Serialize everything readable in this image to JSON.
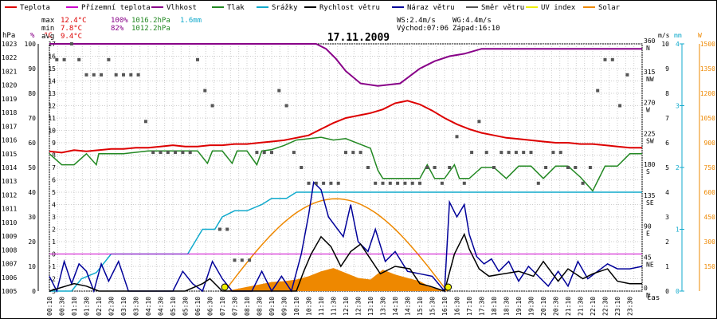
{
  "legend": [
    {
      "label": "Teplota",
      "color": "#dd0000"
    },
    {
      "label": "Přízemní teplota",
      "color": "#cc00cc"
    },
    {
      "label": "Vlhkost",
      "color": "#880088"
    },
    {
      "label": "Tlak",
      "color": "#228822"
    },
    {
      "label": "Srážky",
      "color": "#11aacc"
    },
    {
      "label": "Rychlost větru",
      "color": "#000000"
    },
    {
      "label": "Náraz větru",
      "color": "#000099"
    },
    {
      "label": "Směr větru",
      "color": "#555555"
    },
    {
      "label": "UV index",
      "color": "#eeee00"
    },
    {
      "label": "Solar",
      "color": "#ee8800"
    }
  ],
  "stats": {
    "max": {
      "label": "max",
      "temp": "12.4°C",
      "hum": "100%",
      "press": "1016.2hPa",
      "rain": "1.6mm"
    },
    "min": {
      "label": "min",
      "temp": "7.8°C",
      "hum": "82%",
      "press": "1012.2hPa"
    },
    "avg": {
      "label": "avg",
      "temp": "9.4°C"
    },
    "ws": "WS:2.4m/s",
    "wg": "WG:4.4m/s",
    "sunrise": "Východ:07:06",
    "sunset": "Západ:16:10"
  },
  "chart_data": {
    "type": "line",
    "title": "17.11.2009",
    "xlabel": "čas",
    "x_ticks": [
      "00:10",
      "00:30",
      "01:10",
      "01:30",
      "02:10",
      "02:30",
      "03:10",
      "03:30",
      "04:10",
      "04:30",
      "05:10",
      "05:30",
      "06:10",
      "06:30",
      "07:10",
      "07:30",
      "08:10",
      "08:30",
      "09:10",
      "09:30",
      "10:10",
      "10:30",
      "11:10",
      "11:30",
      "12:10",
      "12:30",
      "13:10",
      "13:30",
      "14:10",
      "14:30",
      "15:10",
      "15:30",
      "16:10",
      "16:30",
      "17:10",
      "17:30",
      "18:10",
      "18:30",
      "19:10",
      "19:30",
      "20:10",
      "20:30",
      "21:10",
      "21:30",
      "22:10",
      "22:30",
      "23:10",
      "23:30"
    ],
    "left_axes": {
      "hPa": {
        "unit": "hPa",
        "range": [
          1005,
          1023
        ],
        "ticks": [
          "1005",
          "1006",
          "1007",
          "1008",
          "1009",
          "1010",
          "1011",
          "1012",
          "1013",
          "1014",
          "1015",
          "1016",
          "1017",
          "1018",
          "1019",
          "1020",
          "1021",
          "1022",
          "1023"
        ]
      },
      "percent": {
        "unit": "%",
        "range": [
          0,
          100
        ],
        "ticks": [
          "0",
          "10",
          "20",
          "30",
          "40",
          "50",
          "60",
          "70",
          "80",
          "90",
          "100"
        ]
      },
      "celsius": {
        "unit": "°C",
        "range": [
          -3,
          17
        ],
        "ticks": [
          "-3",
          "-2",
          "-1",
          "0",
          "1",
          "2",
          "3",
          "4",
          "5",
          "6",
          "7",
          "8",
          "9",
          "10",
          "11",
          "12",
          "13",
          "14",
          "15",
          "16",
          "17"
        ]
      }
    },
    "right_axes": {
      "direction": {
        "ticks": [
          "0 N",
          "45 NE",
          "90 E",
          "135 SE",
          "180 S",
          "225 SW",
          "270 W",
          "315 NW",
          "360 N"
        ]
      },
      "wind": {
        "unit": "m/s",
        "range": [
          0,
          10
        ],
        "ticks": [
          "0",
          "1",
          "2",
          "3",
          "4",
          "5",
          "6",
          "7",
          "8",
          "9",
          "10"
        ]
      },
      "rain": {
        "unit": "mm",
        "range": [
          0,
          4
        ],
        "ticks": [
          "0",
          "1",
          "2",
          "3",
          "4"
        ]
      },
      "solar": {
        "unit": "W",
        "range": [
          0,
          1500
        ],
        "ticks": [
          "0",
          "150",
          "300",
          "450",
          "600",
          "750",
          "900",
          "1050",
          "1200",
          "1350",
          "1500"
        ]
      }
    },
    "series": {
      "temperature": {
        "name": "Teplota",
        "unit": "°C",
        "x": [
          0,
          0.5,
          1,
          1.5,
          2,
          2.5,
          3,
          3.5,
          4,
          4.5,
          5,
          5.5,
          6,
          6.5,
          7,
          7.5,
          8,
          8.5,
          9,
          9.5,
          10,
          10.5,
          11,
          11.5,
          12,
          12.5,
          13,
          13.5,
          14,
          14.5,
          15,
          15.5,
          16,
          16.5,
          17,
          17.5,
          18,
          18.5,
          19,
          19.5,
          20,
          20.5,
          21,
          21.5,
          22,
          22.5,
          23,
          23.5,
          24
        ],
        "values": [
          8.3,
          8.2,
          8.4,
          8.3,
          8.4,
          8.5,
          8.5,
          8.6,
          8.6,
          8.7,
          8.8,
          8.7,
          8.7,
          8.8,
          8.8,
          8.9,
          8.9,
          9.0,
          9.1,
          9.2,
          9.4,
          9.6,
          10.1,
          10.6,
          11.0,
          11.2,
          11.4,
          11.7,
          12.2,
          12.4,
          12.1,
          11.6,
          11.0,
          10.5,
          10.1,
          9.8,
          9.6,
          9.4,
          9.3,
          9.2,
          9.1,
          9.0,
          9.0,
          8.9,
          8.9,
          8.8,
          8.7,
          8.6,
          8.6
        ]
      },
      "humidity": {
        "name": "Vlhkost",
        "unit": "%",
        "x": [
          0,
          10.8,
          11.2,
          11.6,
          12.0,
          12.6,
          13.3,
          14.2,
          14.6,
          15.0,
          15.6,
          16.2,
          16.8,
          17.5,
          18.4,
          24
        ],
        "values": [
          100,
          100,
          98,
          94,
          89,
          84,
          83,
          84,
          87,
          90,
          93,
          95,
          96,
          98,
          98,
          98
        ]
      },
      "ground_temp": {
        "name": "Přízemní teplota",
        "unit": "°C",
        "x": [
          0,
          24
        ],
        "values": [
          0,
          0
        ]
      },
      "pressure": {
        "name": "Tlak",
        "unit": "hPa",
        "x": [
          0,
          0.5,
          1,
          1.5,
          1.9,
          2,
          2.5,
          3,
          4,
          5,
          6,
          6.4,
          6.6,
          7,
          7.4,
          7.6,
          8,
          8.4,
          8.6,
          9,
          9.5,
          10,
          11,
          11.5,
          12,
          13,
          13.3,
          13.5,
          14,
          14.5,
          15,
          15.3,
          15.6,
          16,
          16.4,
          16.6,
          17,
          17.5,
          18,
          18.5,
          19,
          19.5,
          20,
          20.5,
          21,
          21.5,
          22,
          22.5,
          23,
          23.5,
          24
        ],
        "values": [
          1015,
          1014.2,
          1014.2,
          1015,
          1014.2,
          1015,
          1015,
          1015,
          1015.2,
          1015.2,
          1015.2,
          1014.3,
          1015.2,
          1015.2,
          1014.3,
          1015.2,
          1015.2,
          1014.2,
          1015.2,
          1015.3,
          1015.6,
          1016.0,
          1016.2,
          1016.0,
          1016.1,
          1015.4,
          1013.8,
          1013.2,
          1013.2,
          1013.2,
          1013.2,
          1014.2,
          1013.2,
          1013.2,
          1014.2,
          1013.2,
          1013.2,
          1014.0,
          1014.0,
          1013.2,
          1014.1,
          1014.1,
          1013.2,
          1014.1,
          1014.1,
          1013.3,
          1012.3,
          1014.1,
          1014.1,
          1015.0,
          1015.0
        ]
      },
      "rain": {
        "name": "Srážky",
        "unit": "mm",
        "x": [
          0,
          0.9,
          1.3,
          1.9,
          2.5,
          3,
          3.5,
          4,
          4.5,
          5,
          5.6,
          5.9,
          6.2,
          6.7,
          7,
          7.5,
          8,
          8.6,
          9,
          9.6,
          10,
          10.5,
          11,
          24
        ],
        "values": [
          0,
          0,
          0.2,
          0.3,
          0.6,
          0.6,
          0.6,
          0.6,
          0.6,
          0.6,
          0.6,
          0.8,
          1.0,
          1.0,
          1.2,
          1.3,
          1.3,
          1.4,
          1.5,
          1.5,
          1.6,
          1.6,
          1.6,
          1.6
        ]
      },
      "wind_speed": {
        "name": "Rychlost větru",
        "unit": "m/s",
        "x": [
          0,
          1,
          1.5,
          2,
          2.5,
          5,
          5.5,
          6.2,
          6.5,
          7,
          8,
          8.4,
          9,
          9.4,
          10,
          10.3,
          10.6,
          11,
          11.4,
          11.8,
          12.2,
          12.6,
          13,
          13.4,
          14,
          14.6,
          15,
          15.4,
          16,
          16.4,
          16.8,
          17,
          17.4,
          17.8,
          18.4,
          19,
          19.6,
          20,
          20.6,
          21,
          21.6,
          22,
          22.6,
          23,
          23.5,
          24
        ],
        "values": [
          0,
          0.3,
          0.2,
          0,
          0,
          0,
          0,
          0.3,
          0.5,
          0,
          0,
          0,
          0,
          0,
          0,
          0.8,
          1.5,
          2.2,
          1.8,
          1.0,
          1.6,
          1.9,
          1.3,
          0.7,
          1.0,
          0.9,
          0.3,
          0.2,
          0,
          1.5,
          2.3,
          1.7,
          0.9,
          0.6,
          0.7,
          0.8,
          0.6,
          1.2,
          0.4,
          0.9,
          0.5,
          0.7,
          0.9,
          0.4,
          0.3,
          0.3
        ]
      },
      "wind_gust": {
        "name": "Náraz větru",
        "unit": "m/s",
        "x": [
          0,
          0.3,
          0.6,
          0.9,
          1.2,
          1.5,
          1.8,
          2.1,
          2.4,
          2.8,
          3.2,
          5.0,
          5.4,
          5.8,
          6.2,
          6.6,
          7.0,
          7.4,
          8.2,
          8.6,
          9.0,
          9.4,
          9.8,
          10.2,
          10.5,
          10.7,
          11.0,
          11.3,
          11.6,
          11.9,
          12.2,
          12.5,
          12.9,
          13.2,
          13.6,
          14.0,
          14.5,
          15.0,
          15.5,
          16.0,
          16.2,
          16.5,
          16.8,
          17.0,
          17.3,
          17.6,
          17.9,
          18.2,
          18.6,
          19.0,
          19.4,
          19.8,
          20.2,
          20.6,
          21.0,
          21.4,
          21.8,
          22.2,
          22.6,
          23.0,
          23.5,
          24
        ],
        "values": [
          0.6,
          0,
          1.2,
          0.3,
          1.1,
          0.8,
          0,
          1.1,
          0.4,
          1.2,
          0,
          0,
          0.8,
          0.3,
          0,
          1.2,
          0.5,
          0,
          0,
          0.8,
          0,
          0.6,
          0,
          1.5,
          3.1,
          4.4,
          4.1,
          3.0,
          2.6,
          2.2,
          3.5,
          2.0,
          1.6,
          2.5,
          1.2,
          1.6,
          0.8,
          0.7,
          0.6,
          0,
          3.6,
          3.0,
          3.5,
          2.3,
          1.4,
          1.1,
          1.3,
          0.8,
          1.2,
          0.4,
          1.0,
          0.6,
          0.2,
          0.8,
          0.2,
          1.2,
          0.5,
          0.8,
          1.1,
          0.9,
          0.9,
          1.0
        ]
      },
      "solar": {
        "name": "Solar",
        "unit": "W",
        "x": [
          7.1,
          7.5,
          8,
          8.5,
          9,
          9.5,
          10,
          10.5,
          11,
          11.5,
          12,
          12.5,
          13,
          13.5,
          14,
          14.5,
          15,
          15.5,
          16.1
        ],
        "values": [
          0,
          10,
          25,
          40,
          55,
          60,
          70,
          90,
          120,
          140,
          110,
          80,
          70,
          130,
          100,
          80,
          60,
          20,
          0
        ]
      },
      "solar_theoretical": {
        "name": "Solar",
        "unit": "W",
        "x": [
          7.1,
          8,
          9,
          10,
          11,
          11.5,
          12,
          13,
          14,
          15,
          16.1
        ],
        "values": [
          0,
          200,
          380,
          500,
          550,
          560,
          550,
          480,
          370,
          210,
          0
        ]
      },
      "wind_direction": {
        "name": "Směr větru",
        "unit": "°",
        "x": [
          0.3,
          0.6,
          0.9,
          1.2,
          1.5,
          1.8,
          2.1,
          2.4,
          2.7,
          3.0,
          3.3,
          3.6,
          3.9,
          4.2,
          4.5,
          4.8,
          5.1,
          5.4,
          5.7,
          6.0,
          6.3,
          6.6,
          6.9,
          7.2,
          7.5,
          7.8,
          8.1,
          8.4,
          8.7,
          9.0,
          9.3,
          9.6,
          9.9,
          10.2,
          10.5,
          10.8,
          11.1,
          11.4,
          11.7,
          12.0,
          12.3,
          12.6,
          12.9,
          13.2,
          13.5,
          13.8,
          14.1,
          14.4,
          14.7,
          15.0,
          15.3,
          15.6,
          15.9,
          16.2,
          16.5,
          16.8,
          17.1,
          17.4,
          17.7,
          18.0,
          18.3,
          18.6,
          18.9,
          19.2,
          19.5,
          19.8,
          20.1,
          20.4,
          20.7,
          21.0,
          21.3,
          21.6,
          21.9,
          22.2,
          22.5,
          22.8,
          23.1,
          23.4
        ],
        "values": [
          337,
          337,
          360,
          337,
          315,
          315,
          315,
          337,
          315,
          315,
          315,
          315,
          247,
          202,
          202,
          202,
          202,
          202,
          202,
          337,
          292,
          270,
          90,
          90,
          45,
          45,
          45,
          202,
          202,
          202,
          292,
          270,
          202,
          180,
          157,
          157,
          157,
          157,
          157,
          202,
          202,
          202,
          180,
          157,
          157,
          157,
          157,
          157,
          157,
          157,
          180,
          180,
          157,
          180,
          225,
          157,
          202,
          247,
          202,
          180,
          202,
          202,
          202,
          202,
          202,
          157,
          180,
          202,
          202,
          180,
          180,
          157,
          180,
          292,
          337,
          337,
          270,
          315
        ]
      }
    },
    "sun_markers": {
      "sunrise": 7.1,
      "sunset": 16.15
    }
  }
}
